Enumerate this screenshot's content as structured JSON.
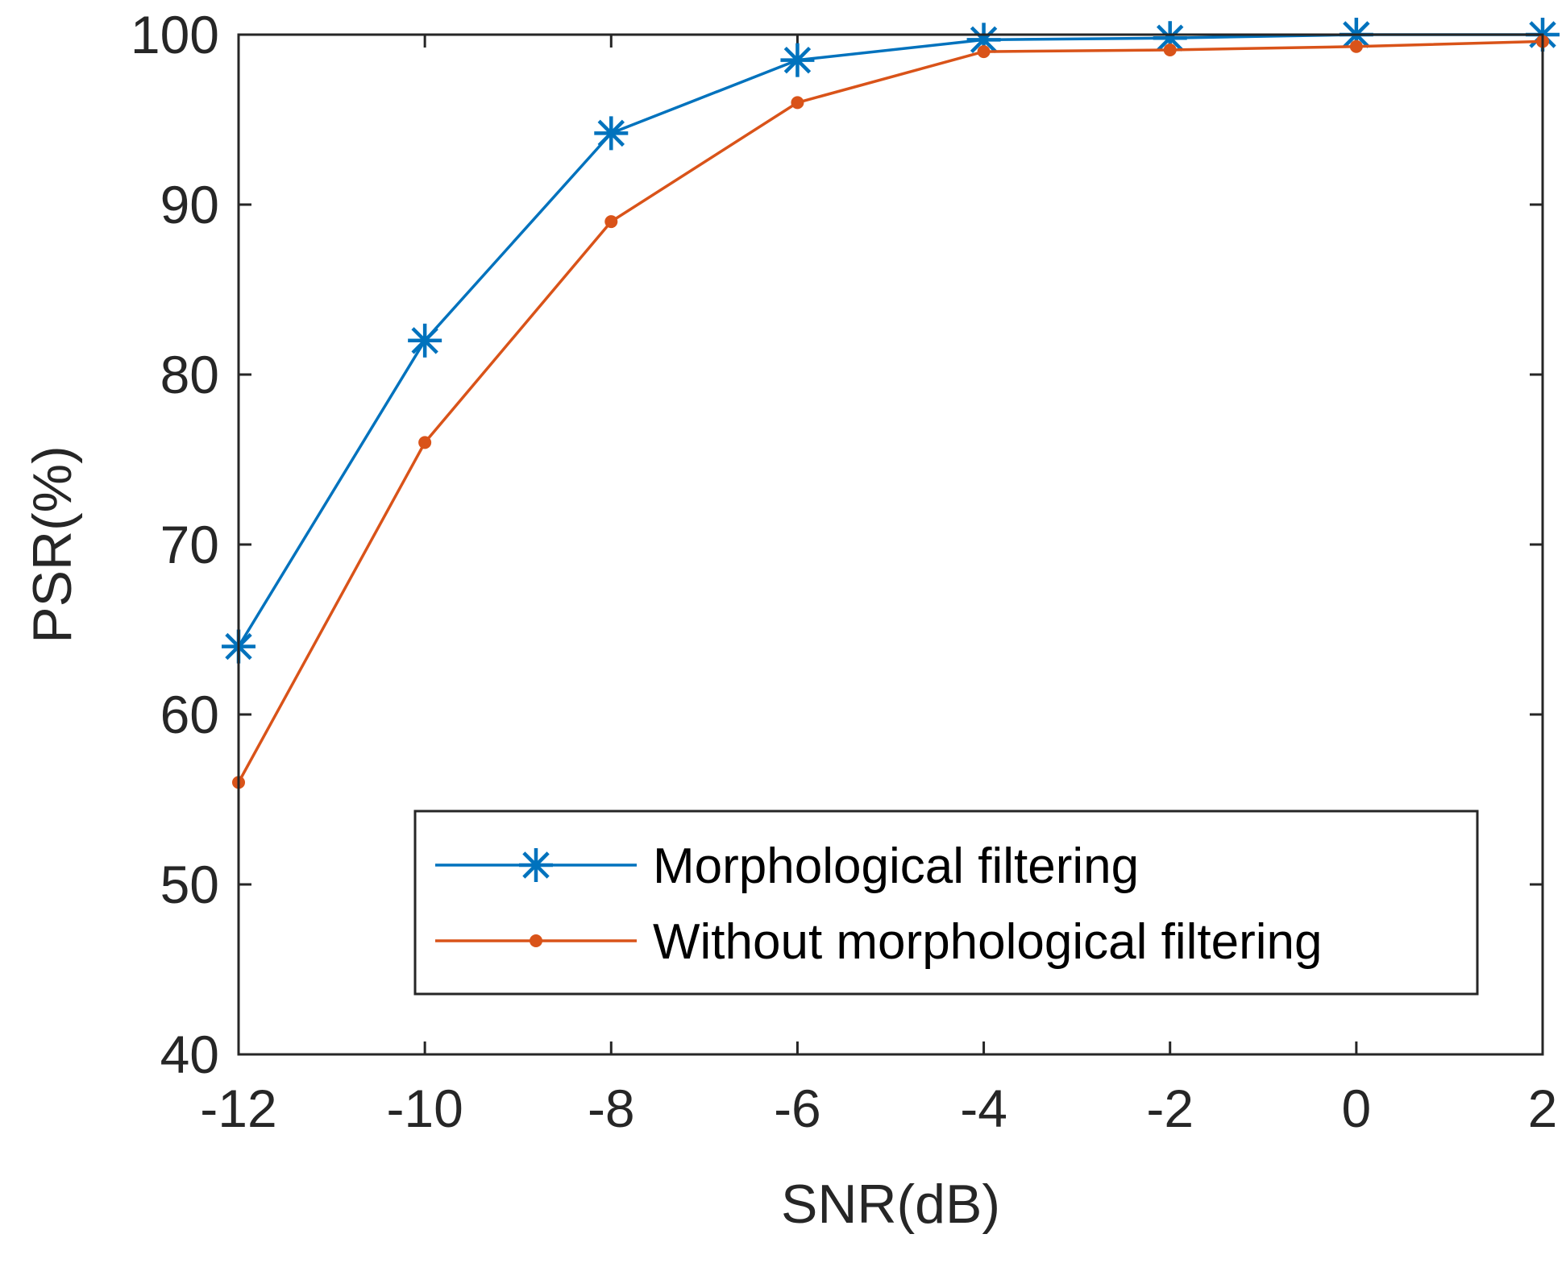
{
  "chart_data": {
    "type": "line",
    "title": "",
    "xlabel": "SNR(dB)",
    "ylabel": "PSR(%)",
    "xlim": [
      -12,
      2
    ],
    "ylim": [
      40,
      100
    ],
    "x": [
      -12,
      -10,
      -8,
      -6,
      -4,
      -2,
      0,
      2
    ],
    "xticks": [
      -12,
      -10,
      -8,
      -6,
      -4,
      -2,
      0,
      2
    ],
    "yticks": [
      40,
      50,
      60,
      70,
      80,
      90,
      100
    ],
    "xtick_labels": [
      "-12",
      "-10",
      "-8",
      "-6",
      "-4",
      "-2",
      "0",
      "2"
    ],
    "ytick_labels": [
      "40",
      "50",
      "60",
      "70",
      "80",
      "90",
      "100"
    ],
    "grid": false,
    "legend_position": "bottom-right",
    "series": [
      {
        "name": "Morphological filtering",
        "color": "#0072BD",
        "marker": "asterisk",
        "values": [
          64,
          82,
          94.2,
          98.5,
          99.7,
          99.8,
          100,
          100
        ]
      },
      {
        "name": "Without morphological filtering",
        "color": "#D95319",
        "marker": "dot",
        "values": [
          56,
          76,
          89,
          96,
          99,
          99.1,
          99.3,
          99.6
        ]
      }
    ]
  }
}
